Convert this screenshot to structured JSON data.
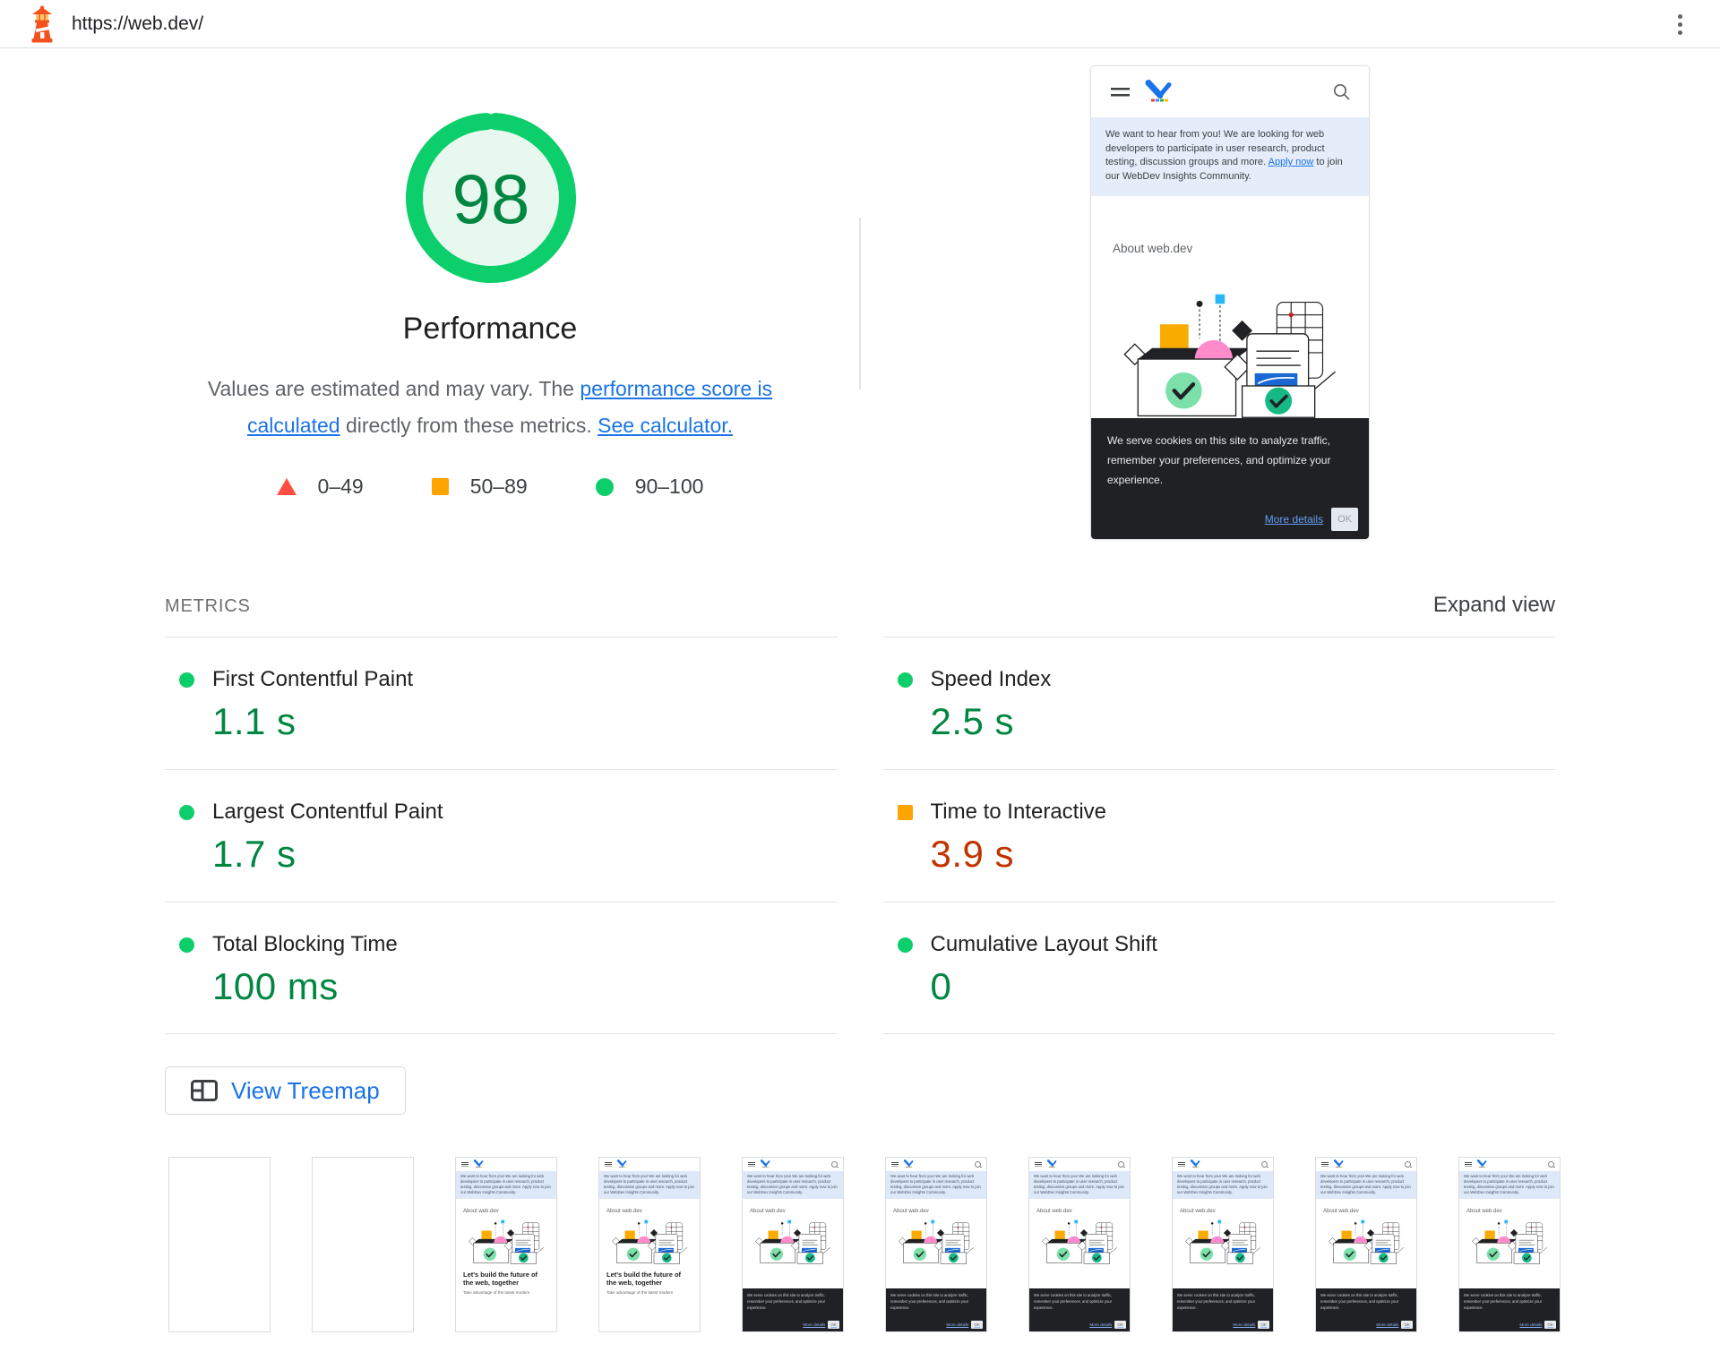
{
  "topbar": {
    "url": "https://web.dev/"
  },
  "score": {
    "value": "98",
    "label": "Performance",
    "gauge_percent": 98,
    "description": {
      "text_1": "Values are estimated and may vary. The ",
      "link_1": "performance score is calculated",
      "text_2": " directly from these metrics. ",
      "link_2": "See calculator."
    }
  },
  "legend": [
    {
      "shape": "triangle",
      "color": "#ff4e42",
      "range": "0–49"
    },
    {
      "shape": "square",
      "color": "#ffa400",
      "range": "50–89"
    },
    {
      "shape": "circle",
      "color": "#0cce6b",
      "range": "90–100"
    }
  ],
  "page_preview": {
    "banner_text_1": "We want to hear from you! We are looking for web developers to participate in user research, product testing, discussion groups and more. ",
    "banner_link": "Apply now",
    "banner_text_2": " to join our WebDev Insights Community.",
    "banner_full": "We want to hear from you! We are looking for web developers to participate in user research, product testing, discussion groups and more. Apply now to join our WebDev Insights Community.",
    "heading": "About web.dev",
    "cookie": {
      "text": "We serve cookies on this site to analyze traffic, remember your preferences, and optimize your experience.",
      "link": "More details",
      "button": "OK"
    }
  },
  "metrics": {
    "section_label": "METRICS",
    "expand_label": "Expand view",
    "items": [
      {
        "name": "First Contentful Paint",
        "value": "1.1 s",
        "status": "pass"
      },
      {
        "name": "Speed Index",
        "value": "2.5 s",
        "status": "pass"
      },
      {
        "name": "Largest Contentful Paint",
        "value": "1.7 s",
        "status": "pass"
      },
      {
        "name": "Time to Interactive",
        "value": "3.9 s",
        "status": "average"
      },
      {
        "name": "Total Blocking Time",
        "value": "100 ms",
        "status": "pass"
      },
      {
        "name": "Cumulative Layout Shift",
        "value": "0",
        "status": "pass"
      }
    ]
  },
  "treemap_button": {
    "label": "View Treemap"
  },
  "filmstrip": {
    "frames": [
      "blank",
      "blank",
      "partial",
      "partial",
      "full",
      "full",
      "full",
      "full",
      "full",
      "full"
    ],
    "headline": "Let's build the future of the web, together",
    "subtext": "Take advantage of the latest modern"
  },
  "colors": {
    "pass": "#0cce6b",
    "pass_text": "#018642",
    "average": "#ffa400",
    "average_text": "#c33300",
    "fail": "#ff4e42",
    "link": "#1a73e8"
  }
}
